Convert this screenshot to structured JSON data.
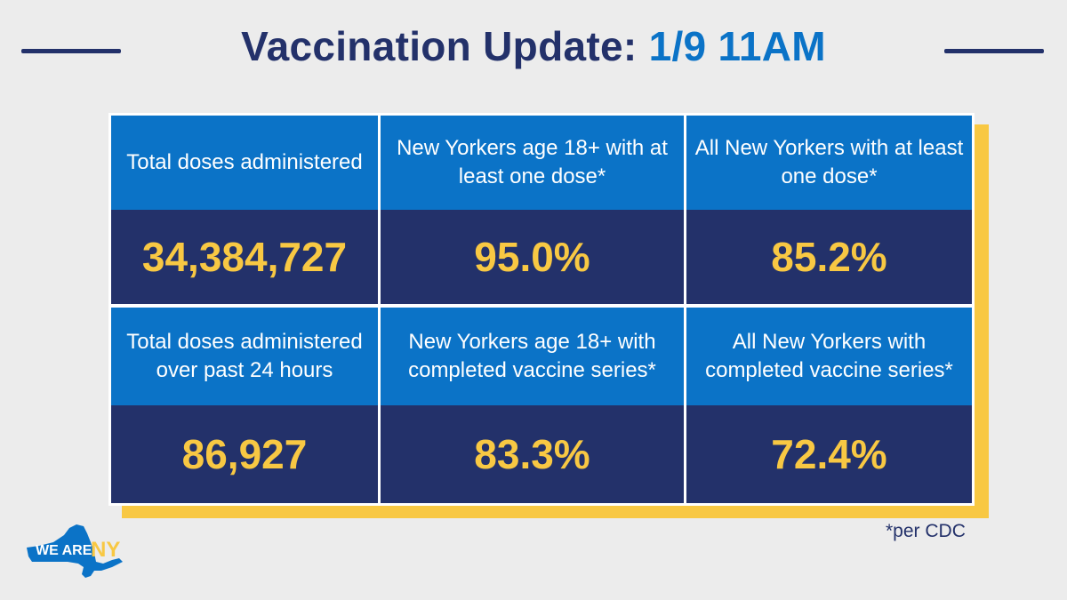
{
  "header": {
    "title_main": "Vaccination Update:",
    "title_accent": "1/9 11AM"
  },
  "table": {
    "cells": [
      {
        "label": "Total doses administered",
        "value": "34,384,727"
      },
      {
        "label": "New Yorkers age 18+ with at least one dose*",
        "value": "95.0%"
      },
      {
        "label": "All New Yorkers with at least one dose*",
        "value": "85.2%"
      },
      {
        "label": "Total doses administered over past 24 hours",
        "value": "86,927"
      },
      {
        "label": "New Yorkers age 18+ with completed vaccine series*",
        "value": "83.3%"
      },
      {
        "label": "All New Yorkers with completed vaccine series*",
        "value": "72.4%"
      }
    ]
  },
  "footnote": "*per CDC",
  "logo": {
    "text_we_are": "WE ARE",
    "text_ny": "NY",
    "icon": "new-york-state-map-icon"
  },
  "colors": {
    "navy": "#23316a",
    "blue": "#0b73c7",
    "yellow": "#f8c843",
    "background": "#ececec"
  }
}
